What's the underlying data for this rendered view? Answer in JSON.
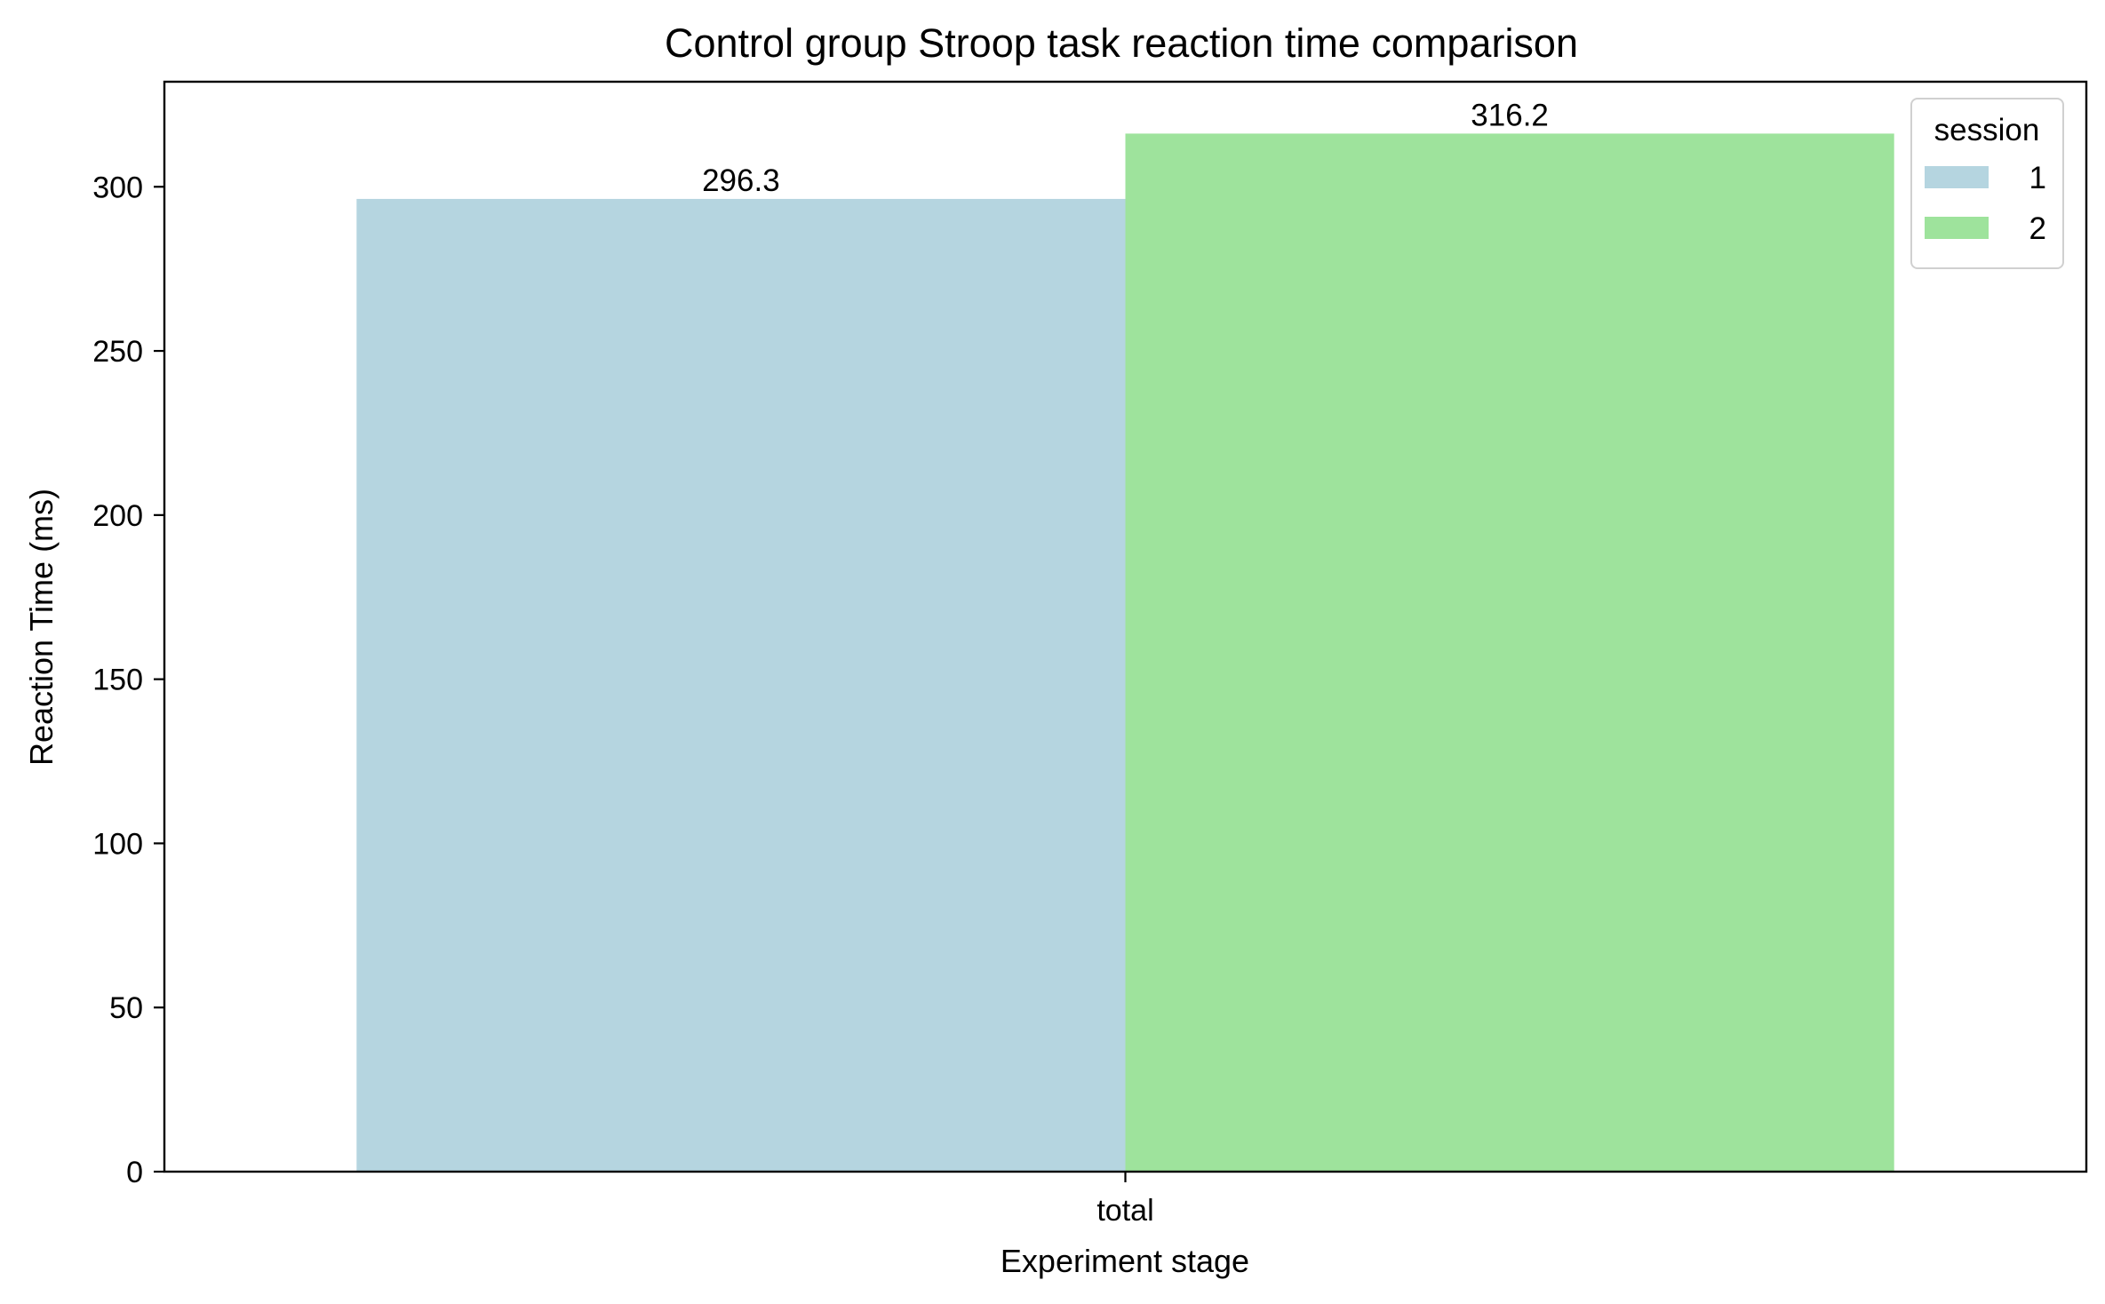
{
  "chart_data": {
    "type": "bar",
    "title": "Control group Stroop task reaction time comparison",
    "xlabel": "Experiment stage",
    "ylabel": "Reaction Time (ms)",
    "categories": [
      "total"
    ],
    "series": [
      {
        "name": "1",
        "values": [
          296.3
        ],
        "color": "#b5d5e0",
        "labels": [
          "296.3"
        ]
      },
      {
        "name": "2",
        "values": [
          316.2
        ],
        "color": "#9ee39c",
        "labels": [
          "316.2"
        ]
      }
    ],
    "ylim": [
      0,
      332
    ],
    "yticks": [
      0,
      50,
      100,
      150,
      200,
      250,
      300
    ],
    "grid": false,
    "legend": {
      "title": "session",
      "position": "top-right"
    }
  }
}
